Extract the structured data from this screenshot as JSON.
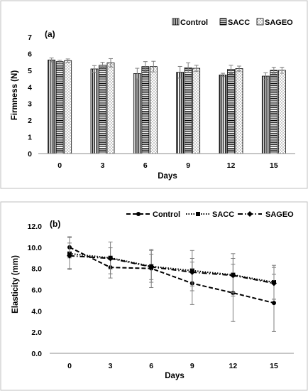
{
  "chart_data": [
    {
      "type": "bar",
      "panel_label": "(a)",
      "title": "",
      "xlabel": "Days",
      "ylabel": "Firmness (N)",
      "categories": [
        "0",
        "3",
        "6",
        "9",
        "12",
        "15"
      ],
      "ylim": [
        0,
        7
      ],
      "yticks": [
        "0",
        "1",
        "2",
        "3",
        "4",
        "5",
        "6",
        "7"
      ],
      "grid": false,
      "legend_position": "top-right",
      "series": [
        {
          "name": "Control",
          "values": [
            5.62,
            5.08,
            4.8,
            4.88,
            4.72,
            4.65
          ],
          "errors": [
            0.12,
            0.2,
            0.32,
            0.35,
            0.1,
            0.2
          ],
          "pattern": "vertical-stripes"
        },
        {
          "name": "SACC",
          "values": [
            5.52,
            5.3,
            5.22,
            5.15,
            5.05,
            5.0
          ],
          "errors": [
            0.08,
            0.18,
            0.3,
            0.3,
            0.25,
            0.18
          ],
          "pattern": "horizontal-stripes"
        },
        {
          "name": "SAGEO",
          "values": [
            5.58,
            5.45,
            5.22,
            5.12,
            5.1,
            5.0
          ],
          "errors": [
            0.1,
            0.25,
            0.32,
            0.18,
            0.15,
            0.18
          ],
          "pattern": "dots"
        }
      ]
    },
    {
      "type": "line",
      "panel_label": "(b)",
      "title": "",
      "xlabel": "Days",
      "ylabel": "Elasticity (mm)",
      "x": [
        0,
        3,
        6,
        9,
        12,
        15
      ],
      "xticks": [
        "0",
        "3",
        "6",
        "9",
        "12",
        "15"
      ],
      "ylim": [
        0,
        12
      ],
      "yticks": [
        "0.0",
        "2.0",
        "4.0",
        "6.0",
        "8.0",
        "10.0",
        "12.0"
      ],
      "grid": false,
      "legend_position": "top",
      "series": [
        {
          "name": "Control",
          "values": [
            10.0,
            8.1,
            8.0,
            6.6,
            5.7,
            4.75
          ],
          "errors": [
            1.0,
            1.0,
            1.8,
            2.0,
            2.7,
            2.7
          ],
          "line": "dashed",
          "marker": "circle"
        },
        {
          "name": "SACC",
          "values": [
            9.4,
            9.0,
            8.2,
            7.8,
            7.4,
            6.7
          ],
          "errors": [
            1.5,
            1.5,
            1.5,
            1.9,
            2.0,
            1.6
          ],
          "line": "dotted",
          "marker": "square"
        },
        {
          "name": "SAGEO",
          "values": [
            9.2,
            8.95,
            8.15,
            7.65,
            7.35,
            6.6
          ],
          "errors": [
            1.2,
            1.0,
            1.2,
            1.3,
            1.6,
            1.5
          ],
          "line": "dashdot",
          "marker": "diamond"
        }
      ]
    }
  ],
  "colors": {
    "bar_fill": "#ffffff",
    "ink": "#000000",
    "frame": "#bfbfbf",
    "error": "#7f7f7f"
  }
}
